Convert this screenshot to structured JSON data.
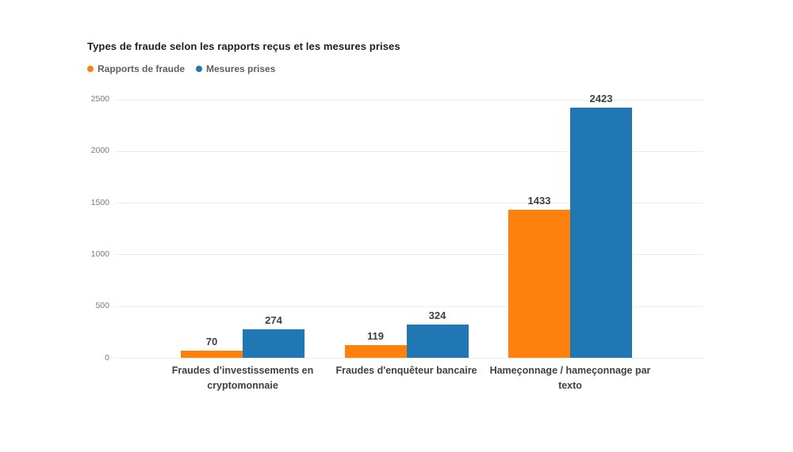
{
  "chart_data": {
    "type": "bar",
    "title": "Types de fraude selon les rapports reçus et les mesures prises",
    "categories": [
      "Fraudes d’investissements en cryptomonnaie",
      "Fraudes d'enquêteur bancaire",
      "Hameçonnage / hameçonnage par texto"
    ],
    "series": [
      {
        "name": "Rapports de fraude",
        "color": "#FF810D",
        "values": [
          70,
          119,
          1433
        ]
      },
      {
        "name": "Mesures prises",
        "color": "#2077B4",
        "values": [
          274,
          324,
          2423
        ]
      }
    ],
    "ylim": [
      0,
      2500
    ],
    "yticks": [
      0,
      500,
      1000,
      1500,
      2000,
      2500
    ],
    "grid": true,
    "legend_position": "top-left",
    "data_labels": true,
    "xlabel": "",
    "ylabel": ""
  },
  "colors": {
    "background": "#FFFFFF",
    "gridline": "#ECECEC",
    "title_text": "#1F1F1F",
    "legend_text": "#5F5F5F",
    "axis_tick_text": "#7A7A7A",
    "data_label_text": "#404040"
  }
}
